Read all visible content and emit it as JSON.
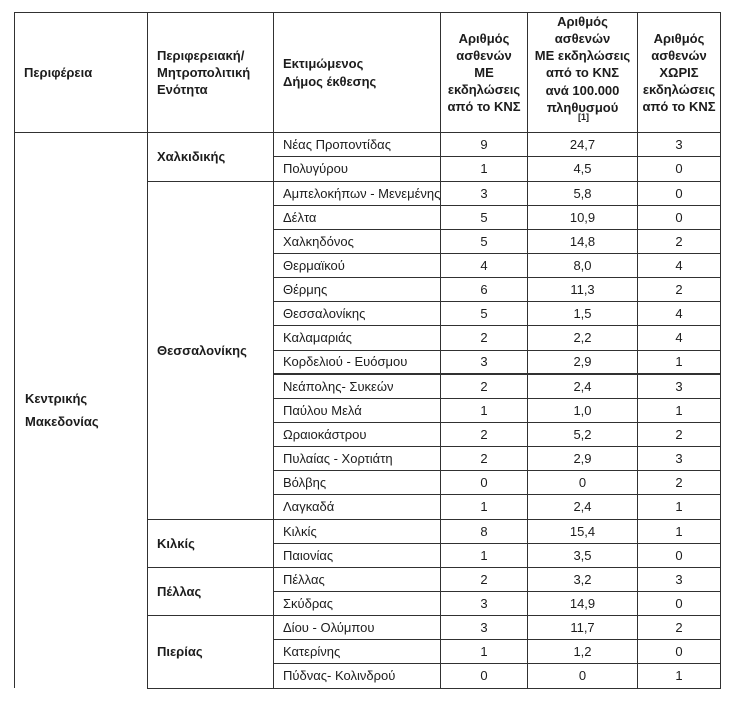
{
  "table": {
    "headers": {
      "region": "Περιφέρεια",
      "unit": "Περιφερειακή/\nΜητροπολιτική\nΕνότητα",
      "municipality": "Εκτιμώμενος\nΔήμος έκθεσης",
      "with_cns": "Αριθμός\nασθενών\nΜΕ\nεκδηλώσεις\nαπό το ΚΝΣ",
      "per_100k": "Αριθμός\nασθενών\nΜΕ εκδηλώσεις\nαπό το ΚΝΣ\nανά 100.000\nπληθυσμού",
      "per_100k_footnote": "[1]",
      "without_cns": "Αριθμός\nασθενών\nΧΩΡΙΣ\nεκδηλώσεις\nαπό το ΚΝΣ"
    },
    "region": "Κεντρικής Μακεδονίας",
    "groups": [
      {
        "unit": "Χαλκιδικής",
        "rows": [
          {
            "municipality": "Νέας Προποντίδας",
            "with_cns": "9",
            "per_100k": "24,7",
            "without_cns": "3"
          },
          {
            "municipality": "Πολυγύρου",
            "with_cns": "1",
            "per_100k": "4,5",
            "without_cns": "0"
          }
        ]
      },
      {
        "unit": "Θεσσαλονίκης",
        "rows": [
          {
            "municipality": "Αμπελοκήπων - Μενεμένης",
            "with_cns": "3",
            "per_100k": "5,8",
            "without_cns": "0"
          },
          {
            "municipality": "Δέλτα",
            "with_cns": "5",
            "per_100k": "10,9",
            "without_cns": "0"
          },
          {
            "municipality": "Χαλκηδόνος",
            "with_cns": "5",
            "per_100k": "14,8",
            "without_cns": "2"
          },
          {
            "municipality": "Θερμαϊκού",
            "with_cns": "4",
            "per_100k": "8,0",
            "without_cns": "4"
          },
          {
            "municipality": "Θέρμης",
            "with_cns": "6",
            "per_100k": "11,3",
            "without_cns": "2"
          },
          {
            "municipality": "Θεσσαλονίκης",
            "with_cns": "5",
            "per_100k": "1,5",
            "without_cns": "4"
          },
          {
            "municipality": "Καλαμαριάς",
            "with_cns": "2",
            "per_100k": "2,2",
            "without_cns": "4"
          },
          {
            "municipality": "Κορδελιού - Ευόσμου",
            "with_cns": "3",
            "per_100k": "2,9",
            "without_cns": "1"
          },
          {
            "municipality": "Νεάπολης- Συκεών",
            "with_cns": "2",
            "per_100k": "2,4",
            "without_cns": "3",
            "thick_top": true
          },
          {
            "municipality": "Παύλου Μελά",
            "with_cns": "1",
            "per_100k": "1,0",
            "without_cns": "1"
          },
          {
            "municipality": "Ωραιοκάστρου",
            "with_cns": "2",
            "per_100k": "5,2",
            "without_cns": "2"
          },
          {
            "municipality": "Πυλαίας - Χορτιάτη",
            "with_cns": "2",
            "per_100k": "2,9",
            "without_cns": "3"
          },
          {
            "municipality": "Βόλβης",
            "with_cns": "0",
            "per_100k": "0",
            "without_cns": "2"
          },
          {
            "municipality": "Λαγκαδά",
            "with_cns": "1",
            "per_100k": "2,4",
            "without_cns": "1"
          }
        ]
      },
      {
        "unit": "Κιλκίς",
        "rows": [
          {
            "municipality": "Κιλκίς",
            "with_cns": "8",
            "per_100k": "15,4",
            "without_cns": "1"
          },
          {
            "municipality": "Παιονίας",
            "with_cns": "1",
            "per_100k": "3,5",
            "without_cns": "0"
          }
        ]
      },
      {
        "unit": "Πέλλας",
        "rows": [
          {
            "municipality": "Πέλλας",
            "with_cns": "2",
            "per_100k": "3,2",
            "without_cns": "3"
          },
          {
            "municipality": "Σκύδρας",
            "with_cns": "3",
            "per_100k": "14,9",
            "without_cns": "0"
          }
        ]
      },
      {
        "unit": "Πιερίας",
        "rows": [
          {
            "municipality": "Δίου - Ολύμπου",
            "with_cns": "3",
            "per_100k": "11,7",
            "without_cns": "2"
          },
          {
            "municipality": "Κατερίνης",
            "with_cns": "1",
            "per_100k": "1,2",
            "without_cns": "0"
          },
          {
            "municipality": "Πύδνας- Κολινδρού",
            "with_cns": "0",
            "per_100k": "0",
            "without_cns": "1"
          }
        ]
      }
    ]
  }
}
